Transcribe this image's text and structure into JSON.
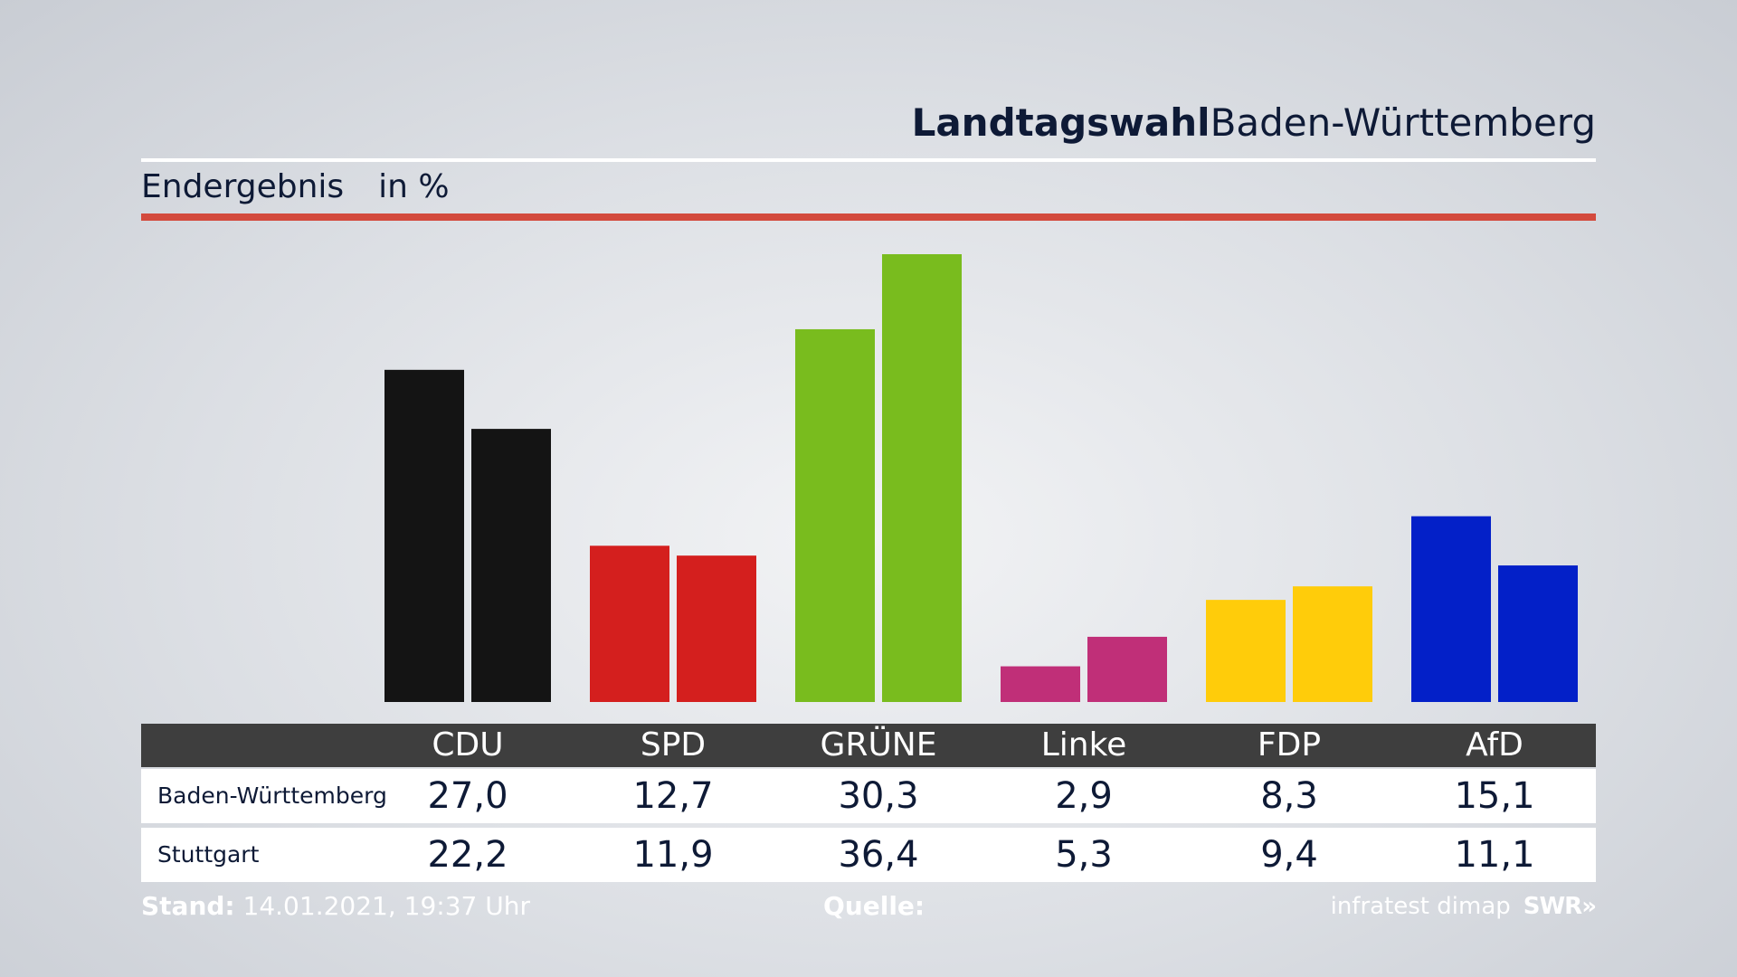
{
  "header": {
    "title_bold": "Landtagswahl",
    "title_regular": "Baden-Württemberg",
    "subtitle": "Endergebnis",
    "unit": "in %"
  },
  "chart_data": {
    "type": "bar",
    "categories": [
      "CDU",
      "SPD",
      "GRÜNE",
      "Linke",
      "FDP",
      "AfD"
    ],
    "series": [
      {
        "name": "Baden-Württemberg",
        "values": [
          27.0,
          12.7,
          30.3,
          2.9,
          8.3,
          15.1
        ]
      },
      {
        "name": "Stuttgart",
        "values": [
          22.2,
          11.9,
          36.4,
          5.3,
          9.4,
          11.1
        ]
      }
    ],
    "colors": [
      "#141414",
      "#d41f1e",
      "#79bc1e",
      "#c02f78",
      "#ffcc0a",
      "#0320c8"
    ],
    "ylim": [
      0,
      36.4
    ],
    "grid": false
  },
  "table": {
    "rows": [
      {
        "label": "Baden-Württemberg",
        "values": [
          "27,0",
          "12,7",
          "30,3",
          "2,9",
          "8,3",
          "15,1"
        ]
      },
      {
        "label": "Stuttgart",
        "values": [
          "22,2",
          "11,9",
          "36,4",
          "5,3",
          "9,4",
          "11,1"
        ]
      }
    ]
  },
  "footer": {
    "stand_label": "Stand:",
    "stand_value": "14.01.2021, 19:37 Uhr",
    "quelle_label": "Quelle:",
    "source": "infratest dimap",
    "brand": "SWR»"
  }
}
